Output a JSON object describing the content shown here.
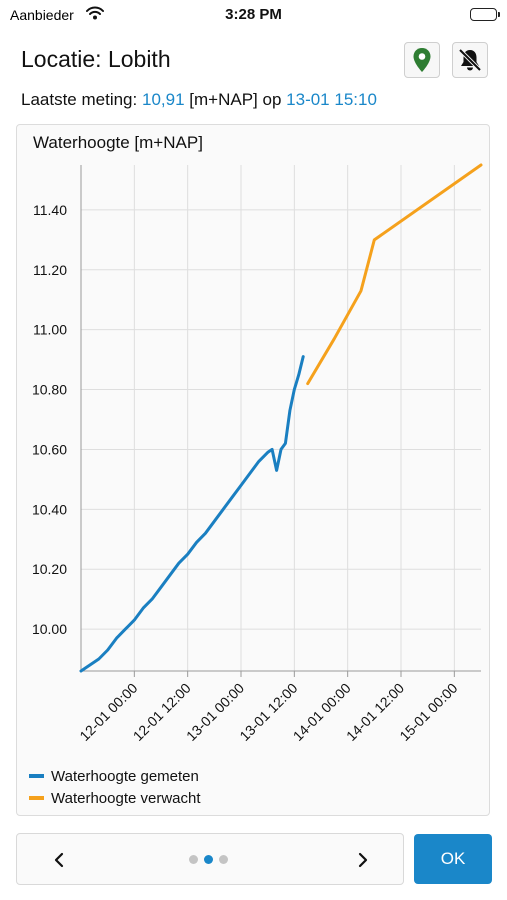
{
  "status_bar": {
    "carrier": "Aanbieder",
    "time": "3:28 PM"
  },
  "header": {
    "title": "Locatie: Lobith",
    "pin_icon": "location-pin-icon",
    "bell_icon": "bell-off-icon"
  },
  "last_measurement": {
    "prefix": "Laatste meting:",
    "value": "10,91",
    "unit": "[m+NAP]",
    "connector": "op",
    "datetime": "13-01 15:10",
    "accent_color": "#1a87c9"
  },
  "chart_data": {
    "type": "line",
    "title": "Waterhoogte [m+NAP]",
    "ylim": [
      9.86,
      11.55
    ],
    "y_ticks": [
      10.0,
      10.2,
      10.4,
      10.6,
      10.8,
      11.0,
      11.2,
      11.4
    ],
    "y_tick_labels": [
      "10.00",
      "10.20",
      "10.40",
      "10.60",
      "10.80",
      "11.00",
      "11.20",
      "11.40"
    ],
    "x_range_hours": [
      -4,
      86
    ],
    "x_ticks_hours": [
      8,
      20,
      32,
      44,
      56,
      68,
      80
    ],
    "x_tick_labels": [
      "12-01 00:00",
      "12-01 12:00",
      "13-01 00:00",
      "13-01 12:00",
      "14-01 00:00",
      "14-01 12:00",
      "15-01 00:00"
    ],
    "grid": true,
    "legend_position": "bottom",
    "series": [
      {
        "name": "Waterhoogte gemeten",
        "color": "#1a7fc1",
        "x": [
          -4,
          -2,
          0,
          2,
          4,
          6,
          8,
          10,
          12,
          14,
          16,
          18,
          20,
          22,
          24,
          26,
          28,
          30,
          32,
          34,
          36,
          38,
          39,
          40,
          41,
          42,
          43,
          44,
          45,
          46
        ],
        "y": [
          9.86,
          9.88,
          9.9,
          9.93,
          9.97,
          10.0,
          10.03,
          10.07,
          10.1,
          10.14,
          10.18,
          10.22,
          10.25,
          10.29,
          10.32,
          10.36,
          10.4,
          10.44,
          10.48,
          10.52,
          10.56,
          10.59,
          10.6,
          10.53,
          10.6,
          10.62,
          10.73,
          10.8,
          10.85,
          10.91
        ]
      },
      {
        "name": "Waterhoogte verwacht",
        "color": "#f5a11c",
        "x": [
          47,
          53,
          59,
          62,
          86
        ],
        "y": [
          10.82,
          10.97,
          11.13,
          11.3,
          11.55
        ]
      }
    ]
  },
  "footer": {
    "ok_label": "OK",
    "pages": 3,
    "active_page": 2
  }
}
